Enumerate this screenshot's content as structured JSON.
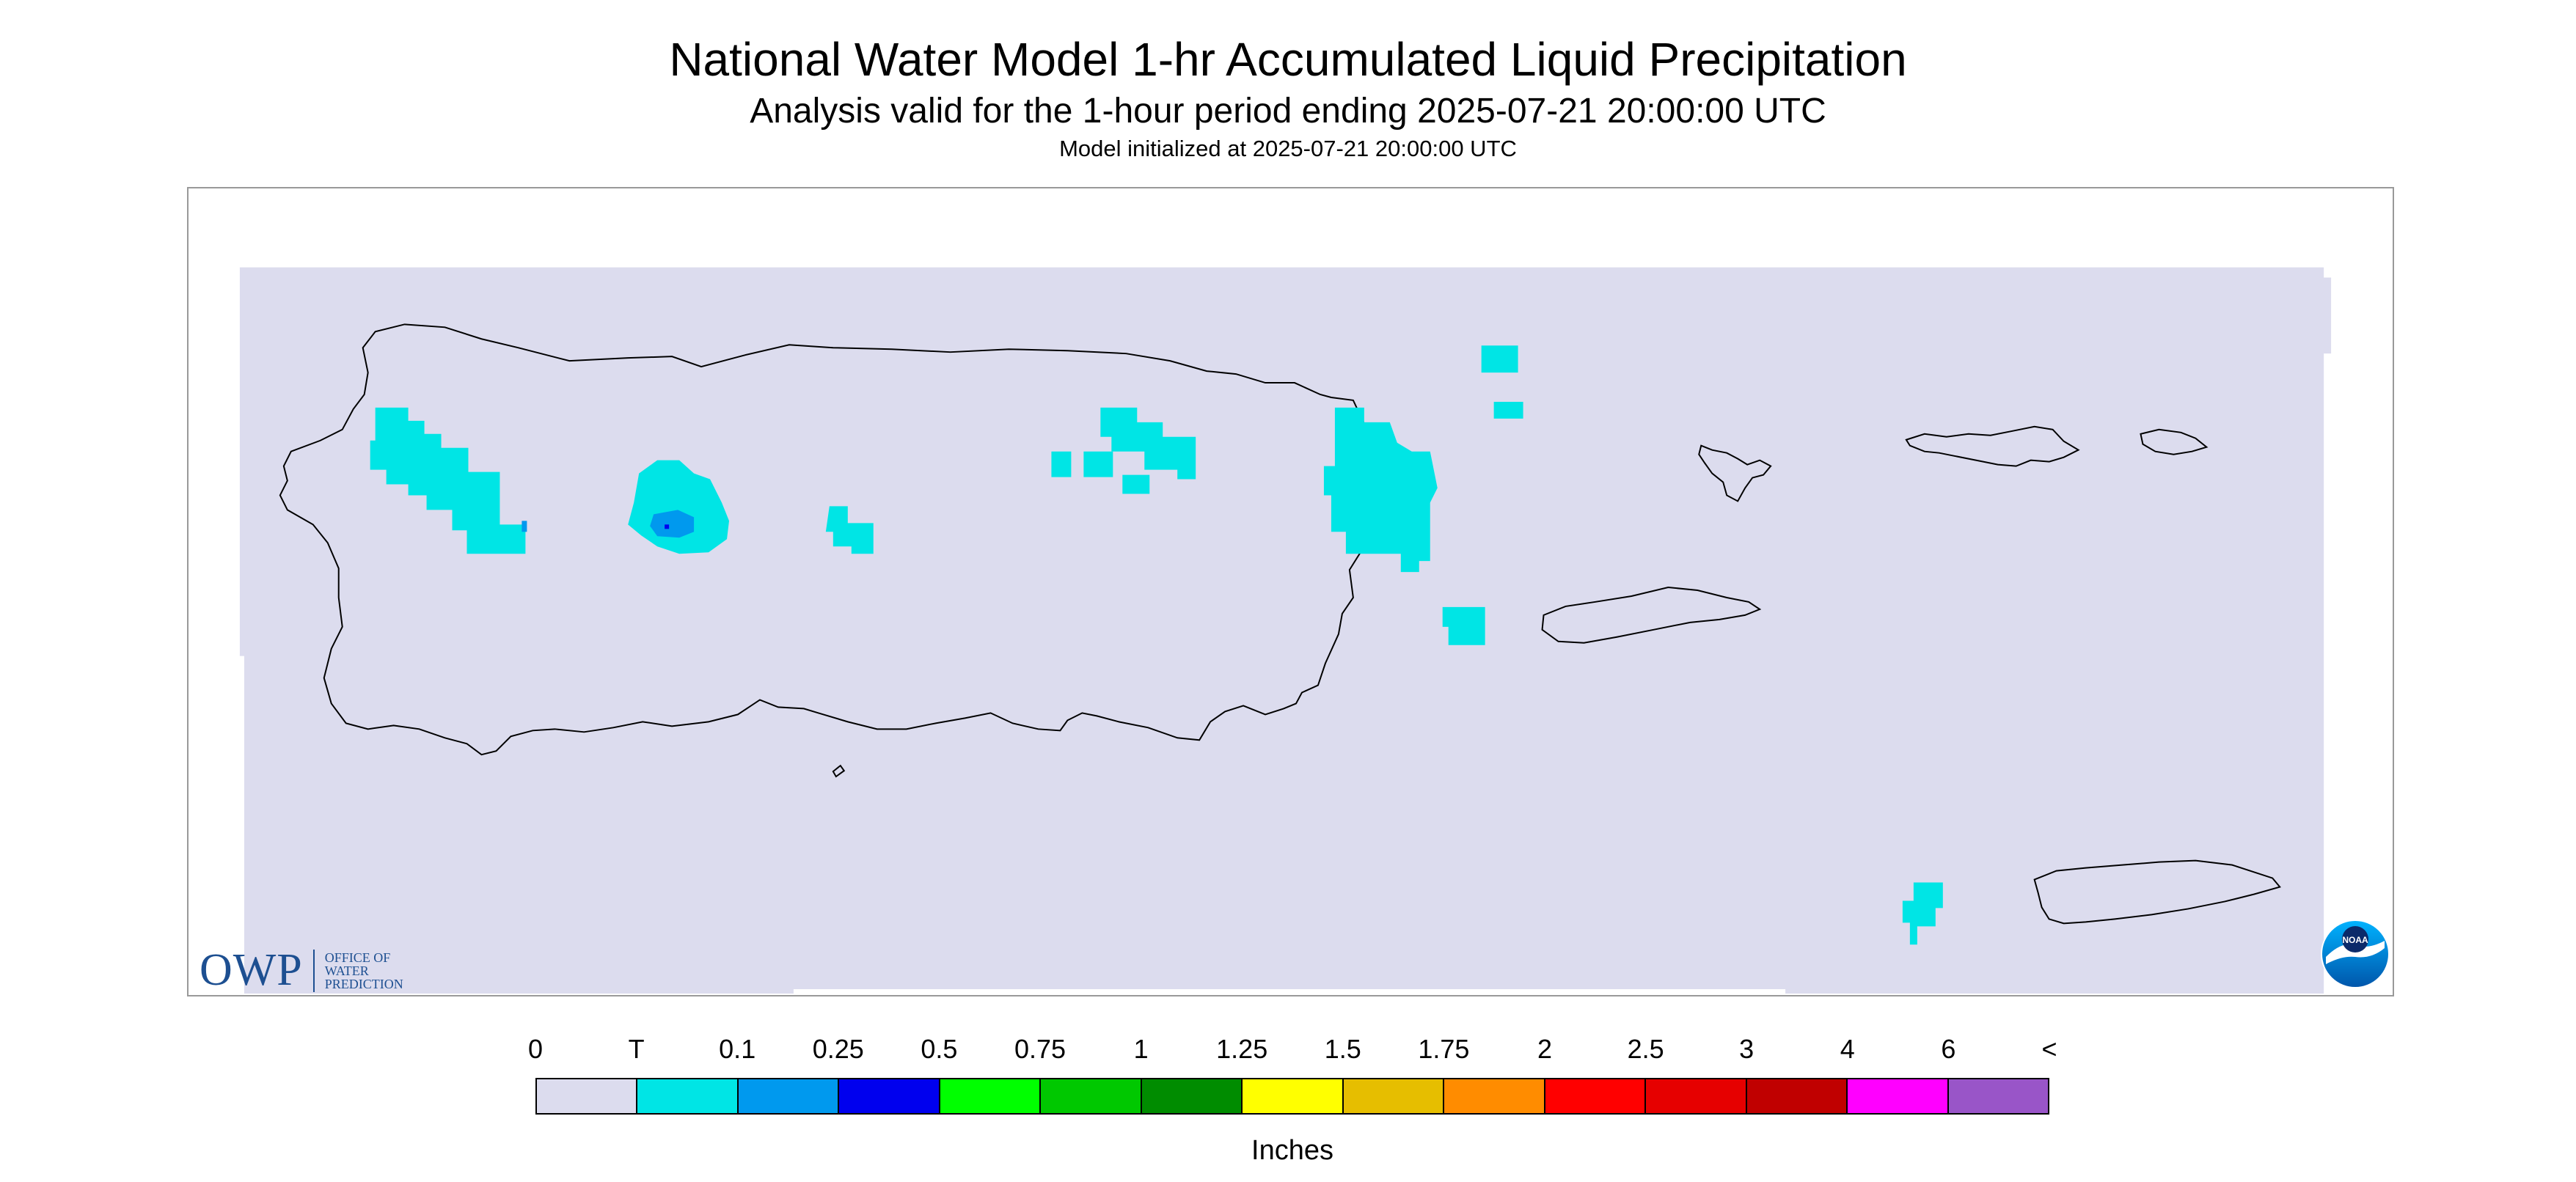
{
  "title": "National Water Model 1-hr Accumulated Liquid Precipitation",
  "subtitle": "Analysis valid for the 1-hour period ending 2025-07-21 20:00:00 UTC",
  "init_line": "Model initialized at 2025-07-21 20:00:00 UTC",
  "logos": {
    "owp_mark": "OWP",
    "owp_text_lines": [
      "OFFICE OF",
      "WATER",
      "PREDICTION"
    ],
    "noaa_text": "NOAA"
  },
  "colors": {
    "background_field": "#dcdcee",
    "trace": "#00e5e5",
    "light_blue": "#0099ee",
    "coastline": "#000000"
  },
  "legend": {
    "units": "Inches",
    "tick_labels": [
      "0",
      "T",
      "0.1",
      "0.25",
      "0.5",
      "0.75",
      "1",
      "1.25",
      "1.5",
      "1.75",
      "2",
      "2.5",
      "3",
      "4",
      "6",
      "<"
    ],
    "swatches": [
      "#dcdcee",
      "#00e5e5",
      "#0099ee",
      "#0000ee",
      "#00ff00",
      "#00c800",
      "#008c00",
      "#ffff00",
      "#e6be00",
      "#ff8c00",
      "#ff0000",
      "#e60000",
      "#c00000",
      "#ff00ff",
      "#9955c8"
    ]
  }
}
